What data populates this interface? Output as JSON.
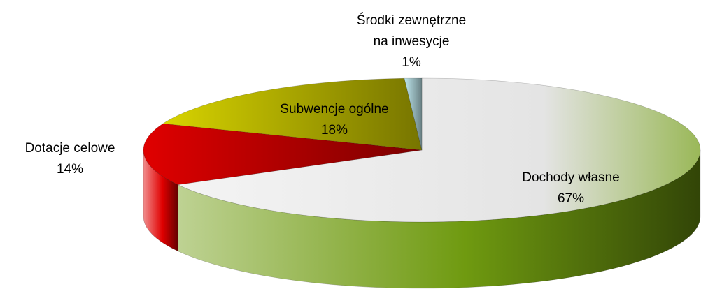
{
  "chart_data": {
    "type": "pie3d",
    "categories": [
      "Dochody własne",
      "Dotacje celowe",
      "Subwencje ogólne",
      "Środki zewnętrzne na inwesycje"
    ],
    "values": [
      67,
      14,
      18,
      1
    ],
    "value_labels": [
      "67%",
      "14%",
      "18%",
      "1%"
    ],
    "colors": [
      "#6f9a10",
      "#e00000",
      "#d8d400",
      "#bfe8ee"
    ]
  }
}
